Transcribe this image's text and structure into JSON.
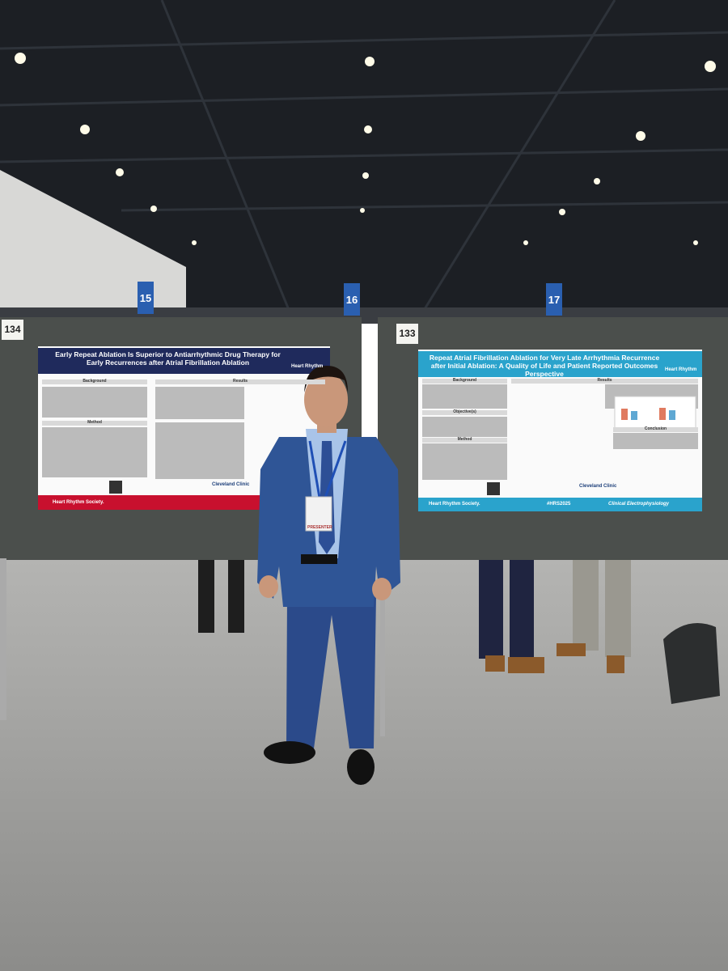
{
  "signs": [
    "15",
    "16",
    "17"
  ],
  "boards": [
    {
      "number": "134",
      "poster": {
        "title": "Early Repeat Ablation Is Superior to Antiarrhythmic Drug Therapy for Early Recurrences after Atrial Fibrillation Ablation",
        "logo": "Heart Rhythm",
        "sections": [
          "Background",
          "Method",
          "Results"
        ],
        "institution": "Cleveland Clinic",
        "footer": "Heart Rhythm Society."
      }
    },
    {
      "number": "133",
      "poster": {
        "title": "Repeat Atrial Fibrillation Ablation for Very Late Arrhythmia Recurrence after Initial Ablation: A Quality of Life and Patient Reported Outcomes Perspective",
        "logo": "Heart Rhythm",
        "sections": [
          "Background",
          "Objective(s)",
          "Method",
          "Results",
          "Conclusion"
        ],
        "institution": "Cleveland Clinic",
        "footer": "Heart Rhythm Society.",
        "hashtag": "#HRS2025",
        "tagline": "Clinical Electrophysiology"
      }
    }
  ],
  "badge": "PRESENTER"
}
